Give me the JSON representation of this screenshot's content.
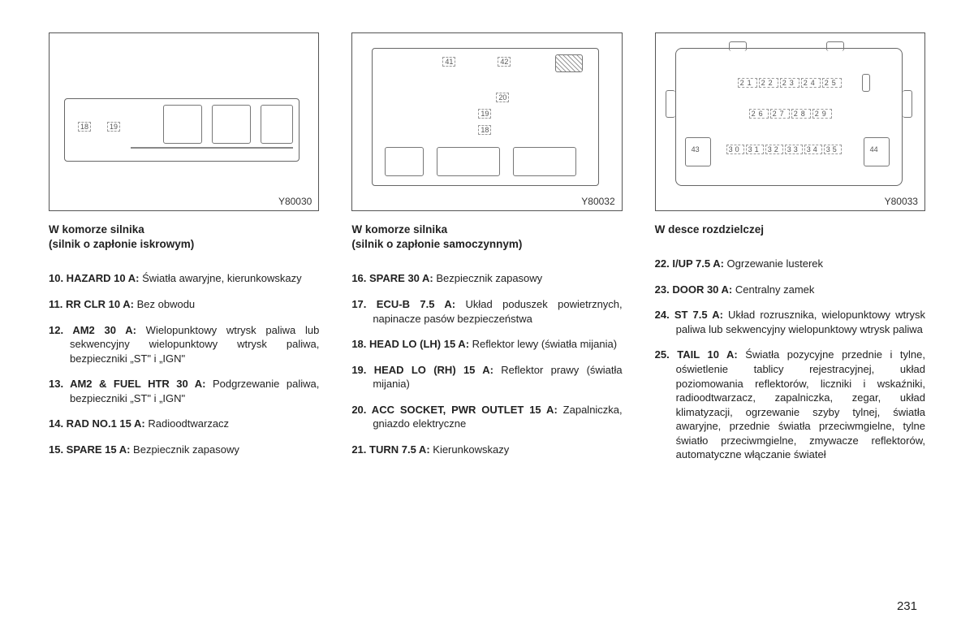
{
  "page_number": "231",
  "columns": [
    {
      "diagram_code": "Y80030",
      "heading_line1": "W komorze silnika",
      "heading_line2": "(silnik o zapłonie iskrowym)",
      "items": [
        {
          "num_label": "10. HAZARD 10 A:",
          "text": " Światła awaryjne, kierunkowskazy"
        },
        {
          "num_label": "11. RR CLR 10 A:",
          "text": " Bez obwodu"
        },
        {
          "num_label": "12. AM2 30 A:",
          "text": " Wielopunktowy wtrysk paliwa lub sekwencyjny wielopunktowy wtrysk paliwa, bezpieczniki „ST\" i „IGN\""
        },
        {
          "num_label": "13. AM2 & FUEL HTR 30 A:",
          "text": " Podgrzewanie paliwa, bezpieczniki „ST\" i „IGN\""
        },
        {
          "num_label": "14. RAD NO.1 15 A:",
          "text": " Radioodtwarzacz"
        },
        {
          "num_label": "15. SPARE 15 A:",
          "text": " Bezpiecznik zapasowy"
        }
      ]
    },
    {
      "diagram_code": "Y80032",
      "heading_line1": "W komorze silnika",
      "heading_line2": "(silnik o zapłonie samoczynnym)",
      "items": [
        {
          "num_label": "16. SPARE 30 A:",
          "text": " Bezpiecznik zapasowy"
        },
        {
          "num_label": "17. ECU-B 7.5 A:",
          "text": " Układ poduszek powietrznych, napinacze pasów bezpieczeństwa"
        },
        {
          "num_label": "18. HEAD LO (LH) 15 A:",
          "text": " Reflektor lewy (światła mijania)"
        },
        {
          "num_label": "19. HEAD LO (RH) 15 A:",
          "text": " Reflektor prawy (światła mijania)"
        },
        {
          "num_label": "20. ACC SOCKET, PWR OUTLET 15 A:",
          "text": " Zapalniczka, gniazdo elektryczne"
        },
        {
          "num_label": "21. TURN 7.5 A:",
          "text": " Kierunkowskazy"
        }
      ]
    },
    {
      "diagram_code": "Y80033",
      "heading_line1": "W desce rozdzielczej",
      "heading_line2": "",
      "items": [
        {
          "num_label": "22. I/UP 7.5 A:",
          "text": " Ogrzewanie lusterek"
        },
        {
          "num_label": "23. DOOR 30 A:",
          "text": " Centralny zamek"
        },
        {
          "num_label": "24. ST 7.5 A:",
          "text": " Układ rozrusznika, wielopunktowy wtrysk paliwa lub sekwencyjny wielopunktowy wtrysk paliwa"
        },
        {
          "num_label": "25. TAIL 10 A:",
          "text": " Światła pozycyjne przednie i tylne, oświetlenie tablicy rejestracyjnej, układ poziomowania reflektorów, liczniki i wskaźniki, radioodtwarzacz, zapalniczka, zegar, układ klimatyzacji, ogrzewanie szyby tylnej, światła awaryjne, przednie światła przeciwmgielne, tylne światło przeciwmgielne, zmywacze reflektorów, automatyczne włączanie świateł"
        }
      ]
    }
  ],
  "diagrams": {
    "d1_slots": [
      "18",
      "19"
    ],
    "d2_top": [
      "41",
      "42"
    ],
    "d2_mid": [
      "20",
      "19",
      "18"
    ],
    "d3_row1": [
      "21",
      "22",
      "23",
      "24",
      "25"
    ],
    "d3_row2": [
      "26",
      "27",
      "28",
      "29"
    ],
    "d3_row3": [
      "30",
      "31",
      "32",
      "33",
      "34",
      "35"
    ],
    "d3_sides": [
      "43",
      "44"
    ]
  },
  "colors": {
    "border": "#555555",
    "text": "#222222",
    "diagram_line": "#777777"
  }
}
